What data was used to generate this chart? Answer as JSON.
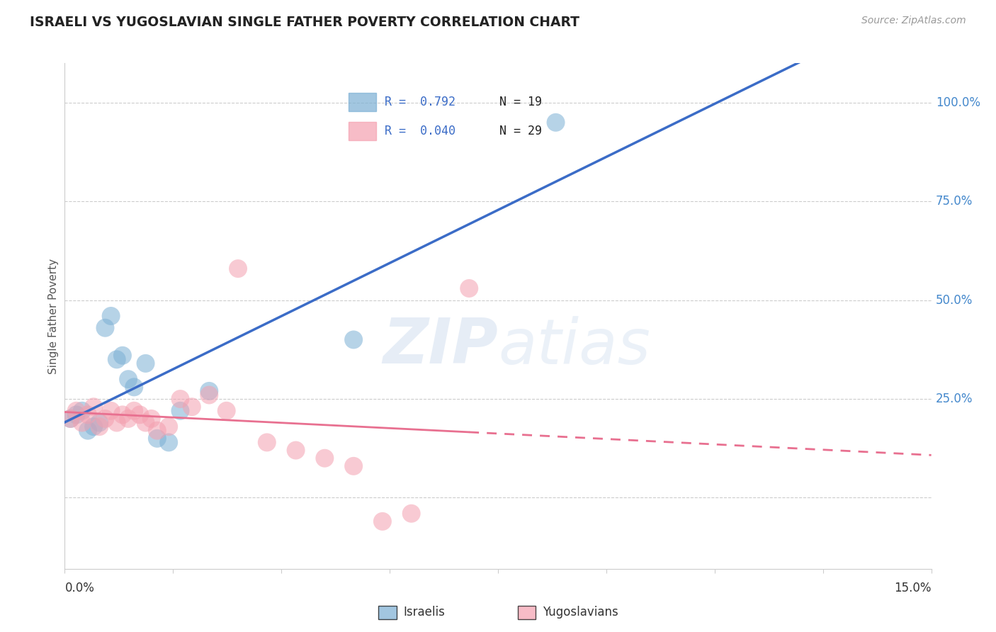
{
  "title": "ISRAELI VS YUGOSLAVIAN SINGLE FATHER POVERTY CORRELATION CHART",
  "source": "Source: ZipAtlas.com",
  "ylabel": "Single Father Poverty",
  "xmin": 0.0,
  "xmax": 0.15,
  "ymin": -0.18,
  "ymax": 1.1,
  "watermark_part1": "ZIP",
  "watermark_part2": "atias",
  "israeli_color": "#7BAFD4",
  "yugoslav_color": "#F4A0B0",
  "israeli_line_color": "#3B6CC7",
  "yugoslav_line_color": "#E87090",
  "israeli_points_x": [
    0.001,
    0.002,
    0.003,
    0.004,
    0.005,
    0.006,
    0.007,
    0.008,
    0.009,
    0.01,
    0.011,
    0.012,
    0.014,
    0.016,
    0.018,
    0.02,
    0.025,
    0.05,
    0.085
  ],
  "israeli_points_y": [
    0.2,
    0.21,
    0.22,
    0.17,
    0.18,
    0.19,
    0.43,
    0.46,
    0.35,
    0.36,
    0.3,
    0.28,
    0.34,
    0.15,
    0.14,
    0.22,
    0.27,
    0.4,
    0.95
  ],
  "yugoslav_points_x": [
    0.001,
    0.002,
    0.003,
    0.004,
    0.005,
    0.006,
    0.007,
    0.008,
    0.009,
    0.01,
    0.011,
    0.012,
    0.013,
    0.014,
    0.015,
    0.016,
    0.018,
    0.02,
    0.022,
    0.025,
    0.028,
    0.03,
    0.035,
    0.04,
    0.045,
    0.05,
    0.055,
    0.06,
    0.07
  ],
  "yugoslav_points_y": [
    0.2,
    0.22,
    0.19,
    0.21,
    0.23,
    0.18,
    0.2,
    0.22,
    0.19,
    0.21,
    0.2,
    0.22,
    0.21,
    0.19,
    0.2,
    0.17,
    0.18,
    0.25,
    0.23,
    0.26,
    0.22,
    0.58,
    0.14,
    0.12,
    0.1,
    0.08,
    -0.06,
    -0.04,
    0.53
  ],
  "legend_r1": "R =  0.792",
  "legend_n1": "N = 19",
  "legend_r2": "R =  0.040",
  "legend_n2": "N = 29",
  "ytick_vals": [
    0.0,
    0.25,
    0.5,
    0.75,
    1.0
  ],
  "ytick_labels": [
    "",
    "25.0%",
    "50.0%",
    "75.0%",
    "100.0%"
  ],
  "grid_color": "#CCCCCC",
  "spine_color": "#CCCCCC",
  "right_tick_color": "#4488CC",
  "title_color": "#222222",
  "source_color": "#999999",
  "ylabel_color": "#555555",
  "bottom_label_color": "#333333"
}
